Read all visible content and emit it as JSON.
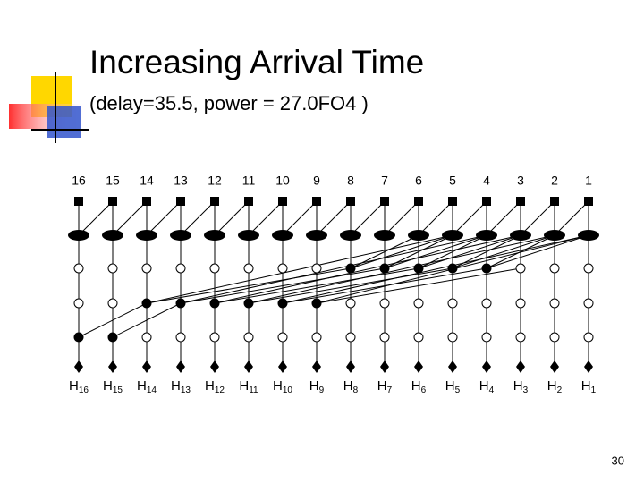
{
  "title": "Increasing Arrival Time",
  "subtitle": "(delay=35.5, power = 27.0FO4 )",
  "diagram": {
    "columns": [
      "16",
      "15",
      "14",
      "13",
      "12",
      "11",
      "10",
      "9",
      "8",
      "7",
      "6",
      "5",
      "4",
      "3",
      "2",
      "1"
    ],
    "outputs": [
      {
        "base": "H",
        "sub": "16"
      },
      {
        "base": "H",
        "sub": "15"
      },
      {
        "base": "H",
        "sub": "14"
      },
      {
        "base": "H",
        "sub": "13"
      },
      {
        "base": "H",
        "sub": "12"
      },
      {
        "base": "H",
        "sub": "11"
      },
      {
        "base": "H",
        "sub": "10"
      },
      {
        "base": "H",
        "sub": "9"
      },
      {
        "base": "H",
        "sub": "8"
      },
      {
        "base": "H",
        "sub": "7"
      },
      {
        "base": "H",
        "sub": "6"
      },
      {
        "base": "H",
        "sub": "5"
      },
      {
        "base": "H",
        "sub": "4"
      },
      {
        "base": "H",
        "sub": "3"
      },
      {
        "base": "H",
        "sub": "2"
      },
      {
        "base": "H",
        "sub": "1"
      }
    ]
  },
  "page_number": "30"
}
